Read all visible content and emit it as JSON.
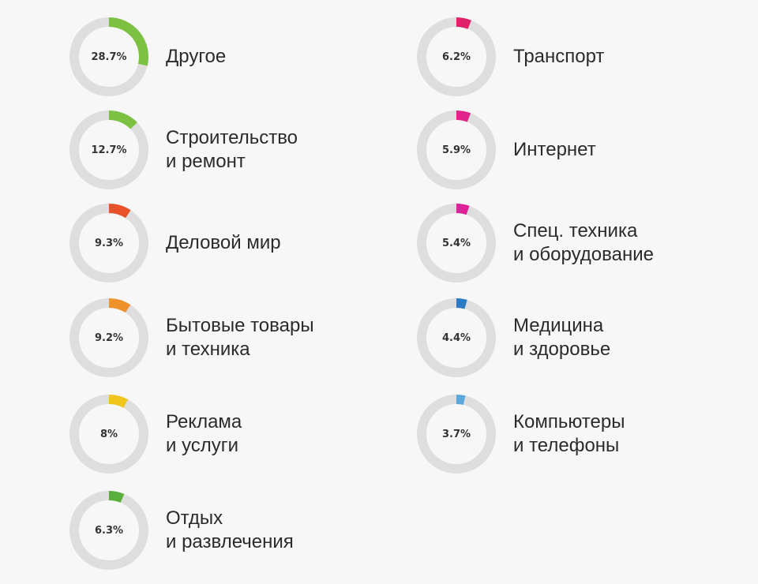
{
  "chart_data": {
    "type": "donut",
    "unit": "%",
    "track_color": "#dedede",
    "items": [
      {
        "label_lines": [
          "Другое"
        ],
        "value": 28.7,
        "value_label": "28.7%",
        "color": "#7cc142"
      },
      {
        "label_lines": [
          "Строительство",
          "и ремонт"
        ],
        "value": 12.7,
        "value_label": "12.7%",
        "color": "#7cc142"
      },
      {
        "label_lines": [
          "Деловой мир"
        ],
        "value": 9.3,
        "value_label": "9.3%",
        "color": "#e8512a"
      },
      {
        "label_lines": [
          "Бытовые товары",
          "и техника"
        ],
        "value": 9.2,
        "value_label": "9.2%",
        "color": "#f0922a"
      },
      {
        "label_lines": [
          "Реклама",
          "и услуги"
        ],
        "value": 8,
        "value_label": "8%",
        "color": "#f2c51e"
      },
      {
        "label_lines": [
          "Отдых",
          "и развлечения"
        ],
        "value": 6.3,
        "value_label": "6.3%",
        "color": "#5aae3c"
      },
      {
        "label_lines": [
          "Транспорт"
        ],
        "value": 6.2,
        "value_label": "6.2%",
        "color": "#e0226a"
      },
      {
        "label_lines": [
          "Интернет"
        ],
        "value": 5.9,
        "value_label": "5.9%",
        "color": "#e0228a"
      },
      {
        "label_lines": [
          "Спец. техника",
          "и оборудование"
        ],
        "value": 5.4,
        "value_label": "5.4%",
        "color": "#e0229a"
      },
      {
        "label_lines": [
          "Медицина",
          "и здоровье"
        ],
        "value": 4.4,
        "value_label": "4.4%",
        "color": "#2a7bc4"
      },
      {
        "label_lines": [
          "Компьютеры",
          "и телефоны"
        ],
        "value": 3.7,
        "value_label": "3.7%",
        "color": "#5aa8dc"
      }
    ]
  }
}
